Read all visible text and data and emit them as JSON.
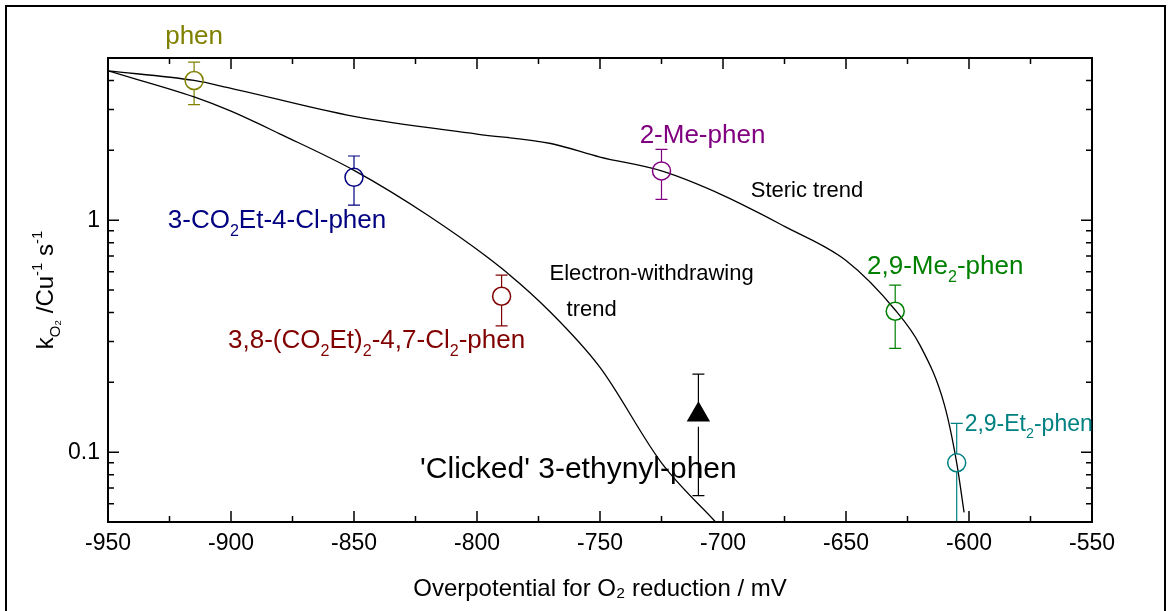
{
  "chart_data": {
    "type": "scatter",
    "xlabel": "Overpotential for O₂ reduction / mV",
    "ylabel": "k$_{O₂}$ /Cu$^{-1}$ s$^{-1}$",
    "log": "y",
    "marker": "circle",
    "legend": false,
    "xlim": [
      -950,
      -550
    ],
    "xticks": [
      -950,
      {
        "value": -925,
        "label": null
      },
      -900,
      {
        "value": -875,
        "label": null
      },
      -850,
      {
        "value": -825,
        "label": null
      },
      -800,
      {
        "value": -775,
        "label": null
      },
      -750,
      {
        "value": -725,
        "label": null
      },
      -700,
      {
        "value": -675,
        "label": null
      },
      -650,
      {
        "value": -625,
        "label": null
      },
      -600,
      {
        "value": -575,
        "label": null
      },
      -550
    ],
    "ylim": [
      0.05,
      5
    ],
    "yticks": [
      {
        "value": 0.06,
        "label": null
      },
      {
        "value": 0.07,
        "label": null
      },
      {
        "value": 0.08,
        "label": null
      },
      {
        "value": 0.09,
        "label": null
      },
      0.1,
      {
        "value": 0.2,
        "label": null
      },
      {
        "value": 0.3,
        "label": null
      },
      {
        "value": 0.4,
        "label": null
      },
      {
        "value": 0.5,
        "label": null
      },
      {
        "value": 0.6,
        "label": null
      },
      {
        "value": 0.7,
        "label": null
      },
      {
        "value": 0.8,
        "label": null
      },
      {
        "value": 0.9,
        "label": null
      },
      1,
      {
        "value": 2,
        "label": null
      },
      {
        "value": 3,
        "label": null
      },
      {
        "value": 4,
        "label": null
      },
      {
        "value": 5,
        "label": null
      }
    ],
    "series": [
      {
        "name": "phen",
        "color": "#808000",
        "x": [
          -915
        ],
        "values": [
          4.0
        ],
        "errors": [
          [
            3.15,
            4.8
          ]
        ]
      },
      {
        "name": "3-CO$_{2}$Et-4-Cl-phen",
        "color": "#000080",
        "x": [
          -850
        ],
        "values": [
          1.53
        ],
        "errors": [
          [
            1.16,
            1.89
          ]
        ]
      },
      {
        "name": "3,8-(CO$_{2}$Et)$_{2}$-4,7-Cl$_{2}$-phen",
        "color": "#800000",
        "x": [
          -790
        ],
        "values": [
          0.47
        ],
        "errors": [
          [
            0.35,
            0.58
          ]
        ]
      },
      {
        "name": "2-Me-phen",
        "color": "#800080",
        "x": [
          -725
        ],
        "values": [
          1.63
        ],
        "errors": [
          [
            1.23,
            2.02
          ]
        ]
      },
      {
        "name": "2,9-Me$_{2}$-phen",
        "color": "#008000",
        "x": [
          -630
        ],
        "values": [
          0.405
        ],
        "errors": [
          [
            0.28,
            0.525
          ]
        ]
      },
      {
        "name": "2,9-Et$_{2}$-phen",
        "color": "#008080",
        "x": [
          -605
        ],
        "values": [
          0.09
        ],
        "errors": [
          [
            0.05,
            0.133
          ]
        ]
      },
      {
        "name": "'Clicked' 3-ethynyl-phen",
        "color": "#000000",
        "marker": "triangle",
        "x": [
          -710
        ],
        "values": [
          0.145
        ],
        "errors": [
          [
            0.065,
            0.217
          ]
        ]
      },
      {
        "name": "Steric trend",
        "type": "line",
        "color": "#000000",
        "marker": "none",
        "x": [
          -950,
          -915,
          -900,
          -850,
          -800,
          -770,
          -750,
          -725,
          -700,
          -675,
          -650,
          -630,
          -620,
          -610,
          -605,
          -602
        ],
        "values": [
          4.4,
          4.0,
          3.7,
          2.8,
          2.35,
          2.14,
          1.87,
          1.63,
          1.28,
          0.94,
          0.67,
          0.41,
          0.29,
          0.16,
          0.09,
          0.055
        ]
      },
      {
        "name": "Electron-withdrawing trend",
        "type": "line",
        "color": "#000000",
        "marker": "none",
        "x": [
          -950,
          -915,
          -900,
          -880,
          -850,
          -820,
          -790,
          -770,
          -750,
          -725,
          -703
        ],
        "values": [
          4.4,
          3.4,
          2.95,
          2.35,
          1.64,
          1.05,
          0.62,
          0.4,
          0.232,
          0.09,
          0.05
        ]
      }
    ]
  }
}
